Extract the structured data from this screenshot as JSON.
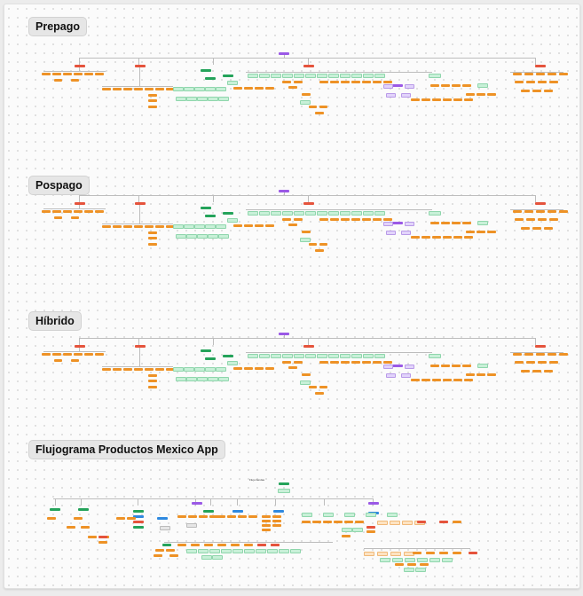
{
  "sections": [
    {
      "title": "Prepago"
    },
    {
      "title": "Pospago"
    },
    {
      "title": "Híbrido"
    },
    {
      "title": "Flujograma Productos Mexico App"
    }
  ],
  "flow": {
    "caption": "Flujo tiendas"
  },
  "colors": {
    "purple": "#9b59e6",
    "red": "#e5533c",
    "green": "#24a35a",
    "orange": "#ee9226",
    "mint": "#c8f0d8",
    "lavender": "#e2d4fb",
    "blue": "#2f89e0"
  }
}
